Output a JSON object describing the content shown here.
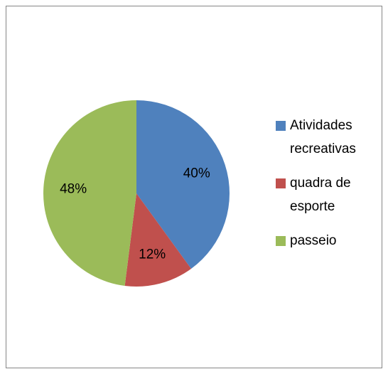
{
  "chart_data": {
    "type": "pie",
    "categories": [
      "Atividades recreativas",
      "quadra de esporte",
      " passeio"
    ],
    "values": [
      40,
      12,
      48
    ],
    "value_labels": [
      "40%",
      "12%",
      "48%"
    ],
    "colors": [
      "#4f81bd",
      "#c0504d",
      "#9bbb59"
    ],
    "legend": "right"
  }
}
